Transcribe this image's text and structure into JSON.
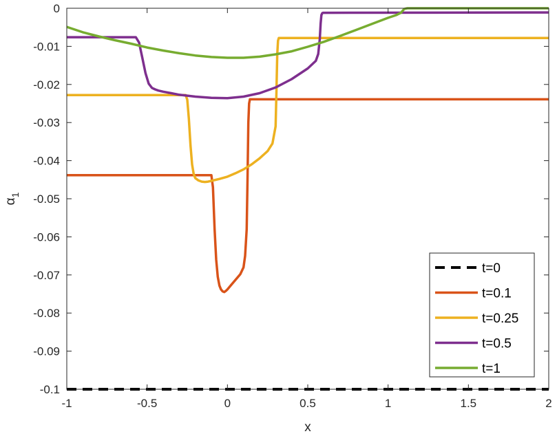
{
  "chart_data": {
    "type": "line",
    "title": "",
    "xlabel": "x",
    "ylabel": "α₁",
    "ylabel_main": "α",
    "ylabel_sub": "1",
    "xlim": [
      -1,
      2
    ],
    "ylim": [
      -0.1,
      0
    ],
    "xticks": [
      -1,
      -0.5,
      0,
      0.5,
      1,
      1.5,
      2
    ],
    "xtick_labels": [
      "-1",
      "-0.5",
      "0",
      "0.5",
      "1",
      "1.5",
      "2"
    ],
    "yticks": [
      0,
      -0.01,
      -0.02,
      -0.03,
      -0.04,
      -0.05,
      -0.06,
      -0.07,
      -0.08,
      -0.09,
      -0.1
    ],
    "ytick_labels": [
      "0",
      "-0.01",
      "-0.02",
      "-0.03",
      "-0.04",
      "-0.05",
      "-0.06",
      "-0.07",
      "-0.08",
      "-0.09",
      "-0.1"
    ],
    "grid": false,
    "legend_position": "bottom-right",
    "series": [
      {
        "name": "t=0",
        "color": "#000000",
        "dashed": true,
        "x": [
          -1,
          2
        ],
        "y": [
          -0.1,
          -0.1
        ]
      },
      {
        "name": "t=0.1",
        "color": "#D95319",
        "dashed": false,
        "x": [
          -1,
          -0.1,
          -0.09,
          -0.08,
          -0.07,
          -0.06,
          -0.05,
          -0.04,
          -0.03,
          -0.02,
          -0.01,
          0,
          0.02,
          0.05,
          0.08,
          0.1,
          0.11,
          0.12,
          0.125,
          0.13,
          0.135,
          0.14,
          2
        ],
        "y": [
          -0.0438,
          -0.0438,
          -0.047,
          -0.058,
          -0.066,
          -0.0705,
          -0.0728,
          -0.0738,
          -0.0743,
          -0.0745,
          -0.0742,
          -0.0738,
          -0.0728,
          -0.0713,
          -0.0698,
          -0.068,
          -0.065,
          -0.058,
          -0.045,
          -0.03,
          -0.025,
          -0.0239,
          -0.0239
        ]
      },
      {
        "name": "t=0.25",
        "color": "#EDB120",
        "dashed": false,
        "x": [
          -1,
          -0.26,
          -0.25,
          -0.24,
          -0.23,
          -0.22,
          -0.21,
          -0.2,
          -0.18,
          -0.16,
          -0.14,
          -0.12,
          -0.1,
          -0.05,
          0,
          0.05,
          0.1,
          0.15,
          0.2,
          0.25,
          0.28,
          0.3,
          0.305,
          0.31,
          0.315,
          0.32,
          2
        ],
        "y": [
          -0.0228,
          -0.0228,
          -0.024,
          -0.029,
          -0.036,
          -0.041,
          -0.0435,
          -0.0446,
          -0.0452,
          -0.0455,
          -0.0456,
          -0.0455,
          -0.0453,
          -0.0448,
          -0.0442,
          -0.0433,
          -0.0423,
          -0.041,
          -0.0394,
          -0.0375,
          -0.0355,
          -0.031,
          -0.022,
          -0.012,
          -0.0085,
          -0.0078,
          -0.0078
        ]
      },
      {
        "name": "t=0.5",
        "color": "#7E2F8E",
        "dashed": false,
        "x": [
          -1,
          -0.57,
          -0.55,
          -0.53,
          -0.51,
          -0.49,
          -0.47,
          -0.45,
          -0.43,
          -0.4,
          -0.35,
          -0.3,
          -0.2,
          -0.1,
          0,
          0.1,
          0.2,
          0.3,
          0.4,
          0.5,
          0.55,
          0.565,
          0.575,
          0.58,
          0.585,
          0.59,
          0.595,
          0.6,
          2
        ],
        "y": [
          -0.0076,
          -0.0076,
          -0.009,
          -0.013,
          -0.017,
          -0.0198,
          -0.0209,
          -0.0213,
          -0.0216,
          -0.0219,
          -0.0223,
          -0.0227,
          -0.0232,
          -0.0235,
          -0.0236,
          -0.0232,
          -0.0223,
          -0.0208,
          -0.0186,
          -0.0158,
          -0.0138,
          -0.012,
          -0.008,
          -0.004,
          -0.0018,
          -0.0013,
          -0.0012,
          -0.0012,
          -0.0011
        ]
      },
      {
        "name": "t=1",
        "color": "#77AC30",
        "dashed": false,
        "x": [
          -1,
          -0.9,
          -0.8,
          -0.7,
          -0.6,
          -0.5,
          -0.4,
          -0.3,
          -0.2,
          -0.1,
          0,
          0.1,
          0.2,
          0.3,
          0.4,
          0.5,
          0.6,
          0.7,
          0.8,
          0.9,
          1,
          1.05,
          1.08,
          1.1,
          1.12,
          2
        ],
        "y": [
          -0.0049,
          -0.0063,
          -0.0074,
          -0.0084,
          -0.0093,
          -0.0103,
          -0.0111,
          -0.0118,
          -0.0124,
          -0.0128,
          -0.013,
          -0.013,
          -0.0127,
          -0.0121,
          -0.0113,
          -0.0101,
          -0.0088,
          -0.0073,
          -0.0057,
          -0.0041,
          -0.0025,
          -0.0018,
          -0.0012,
          -0.0002,
          0,
          0
        ]
      }
    ]
  }
}
